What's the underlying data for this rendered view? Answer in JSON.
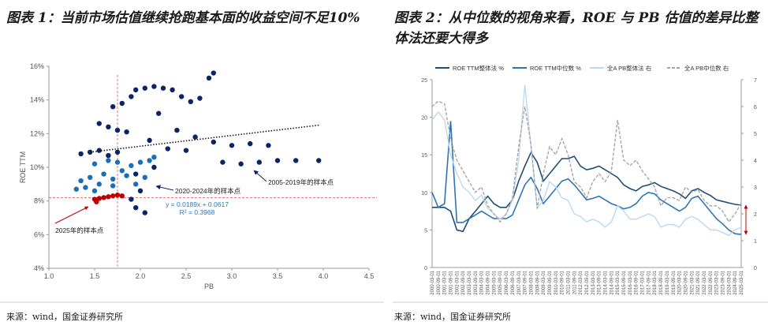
{
  "chart_data": [
    {
      "type": "scatter",
      "title": "图表 1：当前市场估值继续抢跑基本面的收益空间不足10%",
      "source": "来源：wind，国金证券研究所",
      "x_label": "PB",
      "y_label": "ROE TTM",
      "xlim": [
        1.0,
        4.5
      ],
      "xticks": [
        {
          "value": 1,
          "label": "1.0"
        },
        1.5,
        {
          "value": 2,
          "label": "2.0"
        },
        2.5,
        {
          "value": 3,
          "label": "3.0"
        },
        3.5,
        {
          "value": 4,
          "label": "4.0"
        },
        4.5
      ],
      "ylim": [
        4,
        16
      ],
      "yticks": [
        {
          "value": 4,
          "label": "4%"
        },
        {
          "value": 6,
          "label": "6%"
        },
        {
          "value": 8,
          "label": "8%"
        },
        {
          "value": 10,
          "label": "10%"
        },
        {
          "value": 12,
          "label": "12%"
        },
        {
          "value": 14,
          "label": "14%"
        },
        {
          "value": 16,
          "label": "16%"
        }
      ],
      "reference_lines": {
        "x": 1.75,
        "y": 8.2,
        "color": "#e05050"
      },
      "trend_line": {
        "x": [
          1.45,
          3.95
        ],
        "y": [
          10.9,
          12.5
        ],
        "color": "#1a1a1a"
      },
      "fit_equation": [
        "y = 0.0189x + 0.0617",
        "R² = 0.3968"
      ],
      "fit_color": "#2e75b6",
      "series": [
        {
          "name": "2005-2019年的样本点",
          "color": "#0c2366",
          "x": [
            1.35,
            1.45,
            1.55,
            1.65,
            1.75,
            1.55,
            1.65,
            1.75,
            1.85,
            1.7,
            1.8,
            1.9,
            1.95,
            2.05,
            2.15,
            2.25,
            2.35,
            2.45,
            2.55,
            2.65,
            2.75,
            2.8,
            2.2,
            2.4,
            2.6,
            2.8,
            3.0,
            3.2,
            3.4,
            2.1,
            2.3,
            2.5,
            2.9,
            3.1,
            3.3,
            3.5,
            3.7,
            3.95,
            1.95,
            2.0,
            1.95,
            2.05,
            1.9,
            2.15
          ],
          "y": [
            10.8,
            10.9,
            11.0,
            10.7,
            10.9,
            12.6,
            12.4,
            12.2,
            12.1,
            13.6,
            13.8,
            14.2,
            14.6,
            14.7,
            14.8,
            14.7,
            14.6,
            14.2,
            13.9,
            14.1,
            15.3,
            15.6,
            13.2,
            12.2,
            11.8,
            11.5,
            11.3,
            11.4,
            11.3,
            11.6,
            11.1,
            11.0,
            10.3,
            10.2,
            10.3,
            10.4,
            10.4,
            10.4,
            9.6,
            8.6,
            7.6,
            7.3,
            8.1,
            10.0
          ]
        },
        {
          "name": "2020-2024年的样本点",
          "color": "#1a70b8",
          "x": [
            1.3,
            1.4,
            1.5,
            1.35,
            1.45,
            1.55,
            1.6,
            1.7,
            1.8,
            1.9,
            2.0,
            2.1,
            2.15,
            1.65,
            1.75,
            1.85,
            1.95,
            2.05,
            1.5,
            1.7
          ],
          "y": [
            8.7,
            8.8,
            8.6,
            9.2,
            9.4,
            9.0,
            9.6,
            9.3,
            9.8,
            10.1,
            10.3,
            10.4,
            10.6,
            10.4,
            10.3,
            9.5,
            9.0,
            9.4,
            10.2,
            8.9
          ]
        },
        {
          "name": "2025年的样本点",
          "color": "#c00000",
          "x": [
            1.5,
            1.55,
            1.6,
            1.65,
            1.7,
            1.75,
            1.52,
            1.8
          ],
          "y": [
            8.1,
            8.15,
            8.2,
            8.25,
            8.3,
            8.35,
            7.95,
            8.3
          ]
        }
      ]
    },
    {
      "type": "line",
      "title": "图表 2：从中位数的视角来看，ROE 与 PB 估值的差异比整体法还要大得多",
      "source": "来源：wind，国金证券研究所",
      "x": [
        "2000-03-01",
        "2000-09-01",
        "2001-03-01",
        "2001-09-01",
        "2002-03-01",
        "2002-09-01",
        "2003-03-01",
        "2003-09-01",
        "2004-03-01",
        "2004-09-01",
        "2005-03-01",
        "2005-09-01",
        "2006-03-01",
        "2006-09-01",
        "2007-03-01",
        "2007-09-01",
        "2008-03-01",
        "2008-09-01",
        "2009-03-01",
        "2009-09-01",
        "2010-03-01",
        "2010-09-01",
        "2011-03-01",
        "2011-09-01",
        "2012-03-01",
        "2012-09-01",
        "2013-03-01",
        "2013-09-01",
        "2014-03-01",
        "2014-09-01",
        "2015-03-01",
        "2015-09-01",
        "2016-03-01",
        "2016-09-01",
        "2017-03-01",
        "2017-09-01",
        "2018-03-01",
        "2018-09-01",
        "2019-03-01",
        "2019-09-01",
        "2020-03-01",
        "2020-09-01",
        "2021-03-01",
        "2021-09-01",
        "2022-03-01",
        "2022-09-01",
        "2023-03-01",
        "2023-09-01",
        "2024-03-01",
        "2024-09-01",
        "2025-03-01"
      ],
      "ylim": [
        0,
        25
      ],
      "yticks": [
        0,
        5,
        10,
        15,
        20,
        25
      ],
      "y2lim": [
        0,
        7
      ],
      "y2ticks": [
        0,
        1,
        2,
        3,
        4,
        5,
        6,
        7
      ],
      "gap_marker_color": "#c00000",
      "series": [
        {
          "name": "ROE TTM整体法 %",
          "color": "#1f4e79",
          "dash": false,
          "values": [
            8,
            8,
            8,
            7.5,
            5,
            4.8,
            6.5,
            7.5,
            8.5,
            9.5,
            8.5,
            8,
            8,
            9,
            11.5,
            13.5,
            15.3,
            14,
            11.5,
            12.5,
            13.5,
            14.5,
            14.5,
            14.8,
            13.5,
            13,
            13.2,
            13.5,
            13,
            12.5,
            12,
            11,
            10.5,
            10.2,
            10.8,
            11,
            11.3,
            10.8,
            10.5,
            10.2,
            9.8,
            9.2,
            10.2,
            10.5,
            10,
            9.6,
            9,
            8.8,
            8.6,
            8.4,
            8.3
          ]
        },
        {
          "name": "ROE TTM中位数 %",
          "color": "#2e75b6",
          "dash": false,
          "values": [
            10,
            8,
            8.5,
            19.5,
            6,
            6,
            6.5,
            7,
            7.5,
            7,
            6.5,
            6.5,
            6.5,
            7,
            9,
            11,
            12,
            10.5,
            8.5,
            9.5,
            10.5,
            11.5,
            11.8,
            11,
            10,
            9,
            9.2,
            9.5,
            9,
            8.5,
            8.2,
            7.8,
            8,
            8.5,
            9.5,
            10,
            9.8,
            9,
            8.5,
            8,
            7.5,
            8,
            9.2,
            9.5,
            8.5,
            7.5,
            6.5,
            5.8,
            5,
            4.5,
            4.4
          ]
        },
        {
          "name": "全A PB整体法 右",
          "color": "#bdd7ee",
          "dash": false,
          "axis": "y2",
          "values": [
            5.5,
            5.8,
            5.5,
            4.2,
            3.5,
            3,
            2.8,
            2.5,
            2.7,
            2.2,
            2,
            1.8,
            2,
            2.5,
            4,
            6.8,
            4.5,
            2.2,
            2.5,
            3.2,
            3,
            2.6,
            2.5,
            2,
            1.9,
            1.7,
            1.8,
            1.7,
            1.5,
            1.7,
            2.3,
            2.1,
            1.8,
            1.8,
            1.9,
            2,
            1.9,
            1.5,
            1.6,
            1.6,
            1.5,
            1.8,
            1.9,
            1.8,
            1.6,
            1.4,
            1.4,
            1.3,
            1.2,
            1.4,
            1.5
          ]
        },
        {
          "name": "全A PB中位数 右",
          "color": "#a6a6a6",
          "dash": true,
          "axis": "y2",
          "values": [
            6,
            6.2,
            6.1,
            4.8,
            4,
            3.6,
            3.2,
            2.8,
            3,
            2.3,
            2,
            1.7,
            2,
            2.6,
            4.5,
            6,
            4.6,
            2.2,
            3.5,
            4.5,
            4.2,
            4.8,
            4.2,
            3.2,
            3,
            2.6,
            3.2,
            3.5,
            3.2,
            3.6,
            5.5,
            4,
            3.8,
            4,
            3.6,
            3.3,
            3,
            2.3,
            2.6,
            2.6,
            2.5,
            3,
            2.8,
            2.9,
            2.5,
            2.3,
            2.3,
            2.1,
            1.7,
            2,
            2.4
          ]
        }
      ]
    }
  ]
}
